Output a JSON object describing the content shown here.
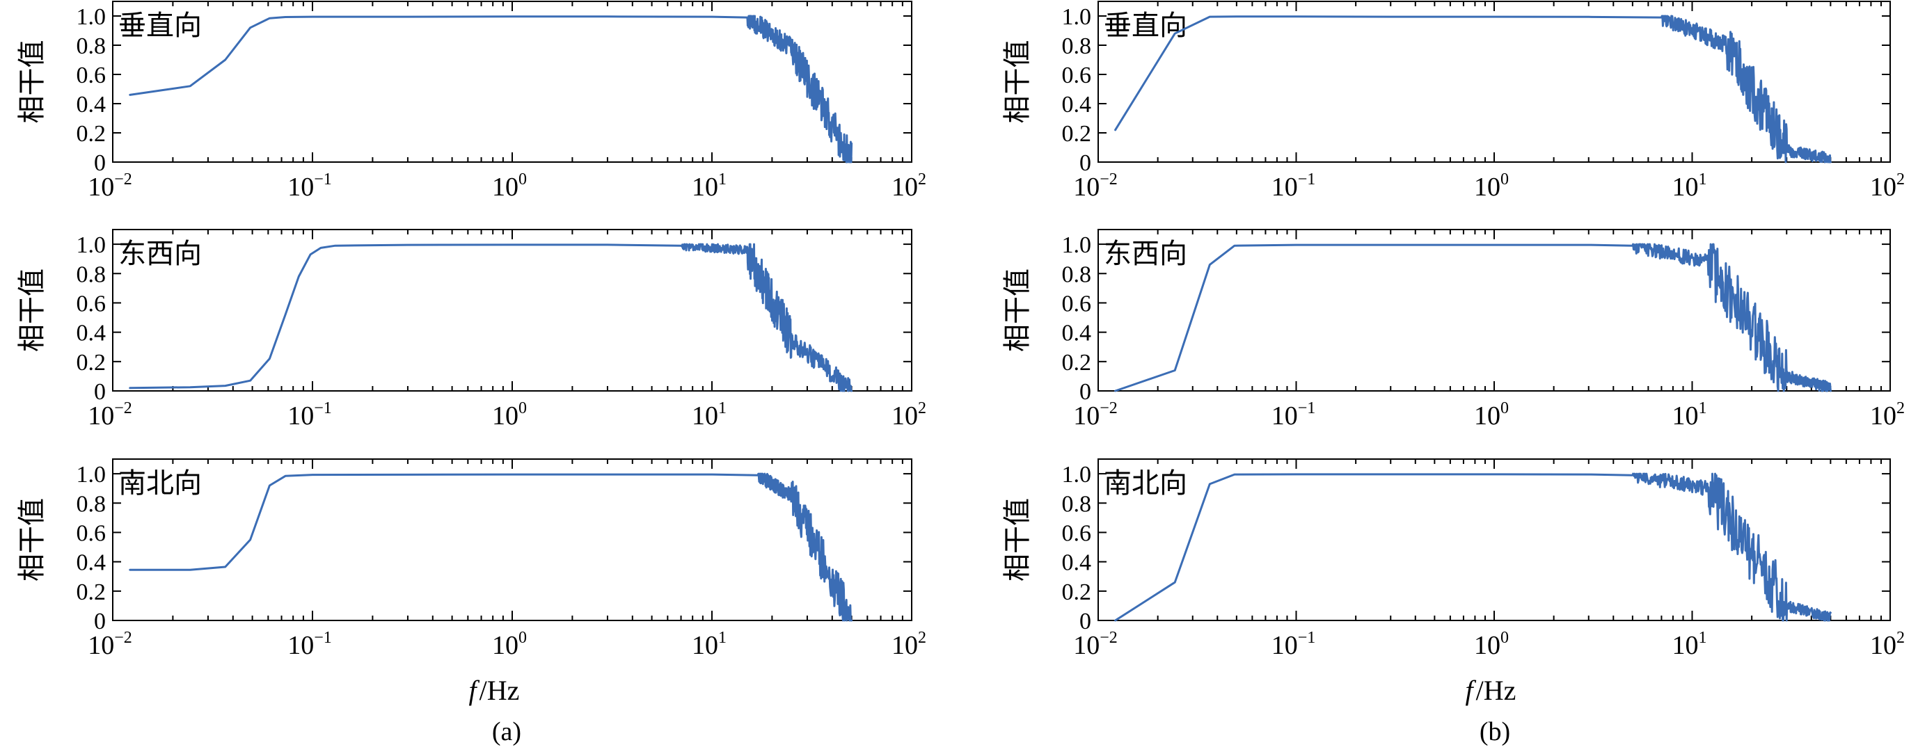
{
  "figure": {
    "x_axis_label": {
      "var": "f",
      "sep": "/",
      "unit": "Hz"
    },
    "captions": [
      "(a)",
      "(b)"
    ],
    "line_color": "#3b6db5"
  },
  "chart_data": [
    {
      "id": "a-vertical",
      "column": "(a)",
      "type": "line",
      "annotation": "垂直向",
      "ylabel": "相干值",
      "xlabel": "f/Hz",
      "x_scale": "log",
      "xlim": [
        0.01,
        100
      ],
      "ylim": [
        0,
        1.1
      ],
      "xticks": [
        {
          "base": "10",
          "exp": "−2"
        },
        {
          "base": "10",
          "exp": "−1"
        },
        {
          "base": "10",
          "exp": "0"
        },
        {
          "base": "10",
          "exp": "1"
        },
        {
          "base": "10",
          "exp": "2"
        }
      ],
      "yticks": [
        "0",
        "0.2",
        "0.4",
        "0.6",
        "0.8",
        "1.0"
      ],
      "grid": false,
      "legend": "none",
      "x": [
        0.0122,
        0.0244,
        0.0366,
        0.0488,
        0.061,
        0.0732,
        0.1,
        0.3,
        1,
        3,
        10,
        15
      ],
      "y": [
        0.46,
        0.52,
        0.7,
        0.92,
        0.985,
        0.993,
        0.995,
        0.995,
        0.996,
        0.996,
        0.995,
        0.99
      ],
      "rolloff": [
        {
          "range": [
            15,
            25
          ],
          "mean": [
            0.99,
            0.78
          ],
          "spread": 0.14
        },
        {
          "range": [
            25,
            50
          ],
          "mean": [
            0.78,
            0.0
          ],
          "spread": 0.26
        }
      ]
    },
    {
      "id": "a-east-west",
      "column": "(a)",
      "type": "line",
      "annotation": "东西向",
      "ylabel": "相干值",
      "xlabel": "f/Hz",
      "x_scale": "log",
      "xlim": [
        0.01,
        100
      ],
      "ylim": [
        0,
        1.1
      ],
      "xticks": [
        {
          "base": "10",
          "exp": "−2"
        },
        {
          "base": "10",
          "exp": "−1"
        },
        {
          "base": "10",
          "exp": "0"
        },
        {
          "base": "10",
          "exp": "1"
        },
        {
          "base": "10",
          "exp": "2"
        }
      ],
      "yticks": [
        "0",
        "0.2",
        "0.4",
        "0.6",
        "0.8",
        "1.0"
      ],
      "grid": false,
      "legend": "none",
      "x": [
        0.0122,
        0.0244,
        0.0366,
        0.0488,
        0.061,
        0.0732,
        0.0854,
        0.0976,
        0.11,
        0.13,
        0.3,
        1,
        3,
        7
      ],
      "y": [
        0.02,
        0.025,
        0.035,
        0.07,
        0.22,
        0.52,
        0.78,
        0.93,
        0.975,
        0.99,
        0.995,
        0.996,
        0.996,
        0.99
      ],
      "rolloff": [
        {
          "range": [
            7,
            15
          ],
          "mean": [
            0.99,
            0.96
          ],
          "spread": 0.06
        },
        {
          "range": [
            15,
            25
          ],
          "mean": [
            0.96,
            0.35
          ],
          "spread": 0.3
        },
        {
          "range": [
            25,
            50
          ],
          "mean": [
            0.35,
            0.0
          ],
          "spread": 0.14
        }
      ]
    },
    {
      "id": "a-north-south",
      "column": "(a)",
      "type": "line",
      "annotation": "南北向",
      "ylabel": "相干值",
      "xlabel": "f/Hz",
      "x_scale": "log",
      "xlim": [
        0.01,
        100
      ],
      "ylim": [
        0,
        1.1
      ],
      "xticks": [
        {
          "base": "10",
          "exp": "−2"
        },
        {
          "base": "10",
          "exp": "−1"
        },
        {
          "base": "10",
          "exp": "0"
        },
        {
          "base": "10",
          "exp": "1"
        },
        {
          "base": "10",
          "exp": "2"
        }
      ],
      "yticks": [
        "0",
        "0.2",
        "0.4",
        "0.6",
        "0.8",
        "1.0"
      ],
      "grid": false,
      "legend": "none",
      "x": [
        0.0122,
        0.0244,
        0.0366,
        0.0488,
        0.061,
        0.0732,
        0.1,
        0.3,
        1,
        3,
        10,
        17
      ],
      "y": [
        0.345,
        0.345,
        0.365,
        0.55,
        0.92,
        0.985,
        0.993,
        0.994,
        0.995,
        0.995,
        0.995,
        0.99
      ],
      "rolloff": [
        {
          "range": [
            17,
            25
          ],
          "mean": [
            0.99,
            0.85
          ],
          "spread": 0.1
        },
        {
          "range": [
            25,
            50
          ],
          "mean": [
            0.85,
            0.0
          ],
          "spread": 0.3
        }
      ]
    },
    {
      "id": "b-vertical",
      "column": "(b)",
      "type": "line",
      "annotation": "垂直向",
      "ylabel": "相干值",
      "xlabel": "f/Hz",
      "x_scale": "log",
      "xlim": [
        0.01,
        100
      ],
      "ylim": [
        0,
        1.1
      ],
      "xticks": [
        {
          "base": "10",
          "exp": "−2"
        },
        {
          "base": "10",
          "exp": "−1"
        },
        {
          "base": "10",
          "exp": "0"
        },
        {
          "base": "10",
          "exp": "1"
        },
        {
          "base": "10",
          "exp": "2"
        }
      ],
      "yticks": [
        "0",
        "0.2",
        "0.4",
        "0.6",
        "0.8",
        "1.0"
      ],
      "grid": false,
      "legend": "none",
      "x": [
        0.0122,
        0.0244,
        0.0366,
        0.05,
        0.1,
        0.3,
        1,
        3,
        7
      ],
      "y": [
        0.22,
        0.88,
        0.995,
        0.996,
        0.996,
        0.995,
        0.995,
        0.994,
        0.99
      ],
      "rolloff": [
        {
          "range": [
            7,
            15
          ],
          "mean": [
            0.99,
            0.8
          ],
          "spread": 0.12
        },
        {
          "range": [
            15,
            30
          ],
          "mean": [
            0.8,
            0.08
          ],
          "spread": 0.36
        },
        {
          "range": [
            30,
            50
          ],
          "mean": [
            0.08,
            0.02
          ],
          "spread": 0.08
        }
      ]
    },
    {
      "id": "b-east-west",
      "column": "(b)",
      "type": "line",
      "annotation": "东西向",
      "ylabel": "相干值",
      "xlabel": "f/Hz",
      "x_scale": "log",
      "xlim": [
        0.01,
        100
      ],
      "ylim": [
        0,
        1.1
      ],
      "xticks": [
        {
          "base": "10",
          "exp": "−2"
        },
        {
          "base": "10",
          "exp": "−1"
        },
        {
          "base": "10",
          "exp": "0"
        },
        {
          "base": "10",
          "exp": "1"
        },
        {
          "base": "10",
          "exp": "2"
        }
      ],
      "yticks": [
        "0",
        "0.2",
        "0.4",
        "0.6",
        "0.8",
        "1.0"
      ],
      "grid": false,
      "legend": "none",
      "x": [
        0.0122,
        0.0244,
        0.0366,
        0.0488,
        0.1,
        0.3,
        1,
        3,
        5
      ],
      "y": [
        0.0,
        0.14,
        0.86,
        0.99,
        0.995,
        0.995,
        0.995,
        0.995,
        0.99
      ],
      "rolloff": [
        {
          "range": [
            5,
            12
          ],
          "mean": [
            0.99,
            0.88
          ],
          "spread": 0.1
        },
        {
          "range": [
            12,
            30
          ],
          "mean": [
            0.88,
            0.1
          ],
          "spread": 0.4
        },
        {
          "range": [
            30,
            50
          ],
          "mean": [
            0.1,
            0.02
          ],
          "spread": 0.08
        }
      ]
    },
    {
      "id": "b-north-south",
      "column": "(b)",
      "type": "line",
      "annotation": "南北向",
      "ylabel": "相干值",
      "xlabel": "f/Hz",
      "x_scale": "log",
      "xlim": [
        0.01,
        100
      ],
      "ylim": [
        0,
        1.1
      ],
      "xticks": [
        {
          "base": "10",
          "exp": "−2"
        },
        {
          "base": "10",
          "exp": "−1"
        },
        {
          "base": "10",
          "exp": "0"
        },
        {
          "base": "10",
          "exp": "1"
        },
        {
          "base": "10",
          "exp": "2"
        }
      ],
      "yticks": [
        "0",
        "0.2",
        "0.4",
        "0.6",
        "0.8",
        "1.0"
      ],
      "grid": false,
      "legend": "none",
      "x": [
        0.0122,
        0.0244,
        0.0366,
        0.0488,
        0.1,
        0.3,
        1,
        3,
        5
      ],
      "y": [
        0.0,
        0.26,
        0.93,
        0.995,
        0.996,
        0.996,
        0.996,
        0.995,
        0.99
      ],
      "rolloff": [
        {
          "range": [
            5,
            12
          ],
          "mean": [
            0.99,
            0.9
          ],
          "spread": 0.1
        },
        {
          "range": [
            12,
            30
          ],
          "mean": [
            0.9,
            0.1
          ],
          "spread": 0.4
        },
        {
          "range": [
            30,
            50
          ],
          "mean": [
            0.1,
            0.02
          ],
          "spread": 0.07
        }
      ]
    }
  ]
}
